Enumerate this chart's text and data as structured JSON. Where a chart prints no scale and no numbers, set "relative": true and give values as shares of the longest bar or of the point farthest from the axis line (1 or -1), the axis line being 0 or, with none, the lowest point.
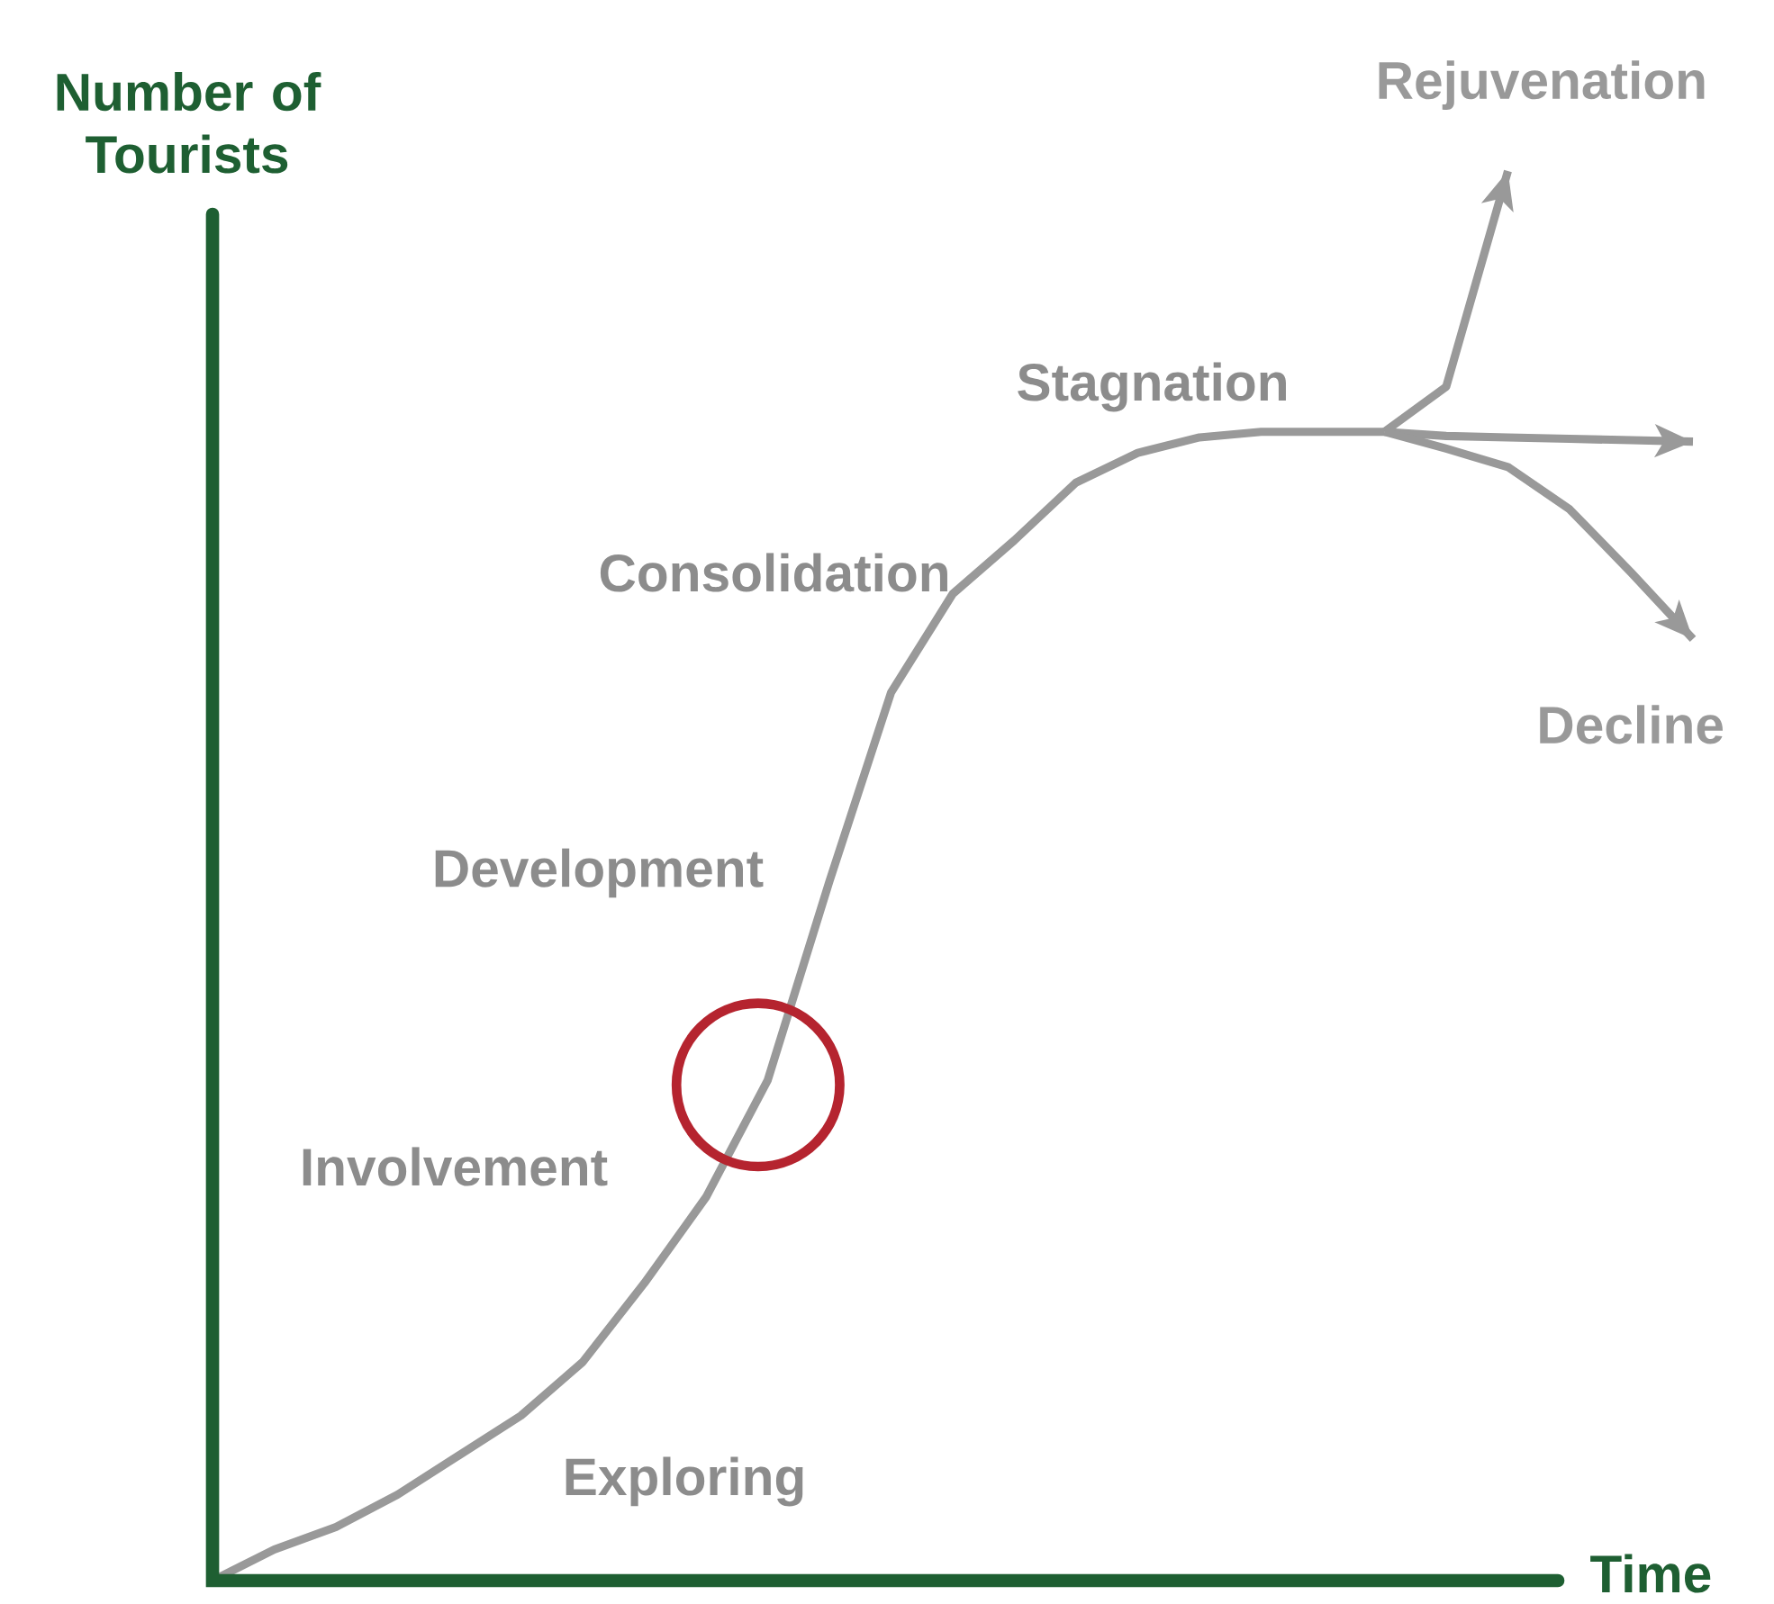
{
  "chart_data": {
    "type": "line",
    "relative": true,
    "marker": "none",
    "line_style": "solid",
    "xlabel": "Time",
    "ylabel": "Number of Tourists",
    "categories": [
      null,
      null,
      null,
      null,
      null,
      null,
      null,
      null,
      null,
      null,
      null,
      null,
      null,
      null,
      null,
      null,
      null,
      null,
      null,
      null,
      null,
      null,
      null,
      null,
      null
    ],
    "series": [
      {
        "color": "#999999",
        "values": [
          0.0,
          0.022,
          0.038,
          0.061,
          0.089,
          0.117,
          0.155,
          0.211,
          0.272,
          0.355,
          0.496,
          0.63,
          0.7,
          0.738,
          0.779,
          0.8,
          0.811,
          0.815,
          0.815,
          0.815,
          null,
          null,
          null,
          null,
          null
        ]
      },
      {
        "name": "Rejuvenation",
        "color": "#999999",
        "values": [
          null,
          null,
          null,
          null,
          null,
          null,
          null,
          null,
          null,
          null,
          null,
          null,
          null,
          null,
          null,
          null,
          null,
          null,
          null,
          0.815,
          0.847,
          1.0,
          null,
          null,
          null
        ]
      },
      {
        "color": "#999999",
        "values": [
          null,
          null,
          null,
          null,
          null,
          null,
          null,
          null,
          null,
          null,
          null,
          null,
          null,
          null,
          null,
          null,
          null,
          null,
          null,
          0.815,
          0.812,
          0.811,
          0.81,
          0.809,
          0.808
        ]
      },
      {
        "name": "Decline",
        "color": "#999999",
        "values": [
          null,
          null,
          null,
          null,
          null,
          null,
          null,
          null,
          null,
          null,
          null,
          null,
          null,
          null,
          null,
          null,
          null,
          null,
          null,
          0.815,
          0.803,
          0.79,
          0.76,
          0.715,
          0.668
        ]
      }
    ],
    "annotations": [
      "Exploring",
      "Involvement",
      "Development",
      "Consolidation",
      "Stagnation"
    ]
  }
}
